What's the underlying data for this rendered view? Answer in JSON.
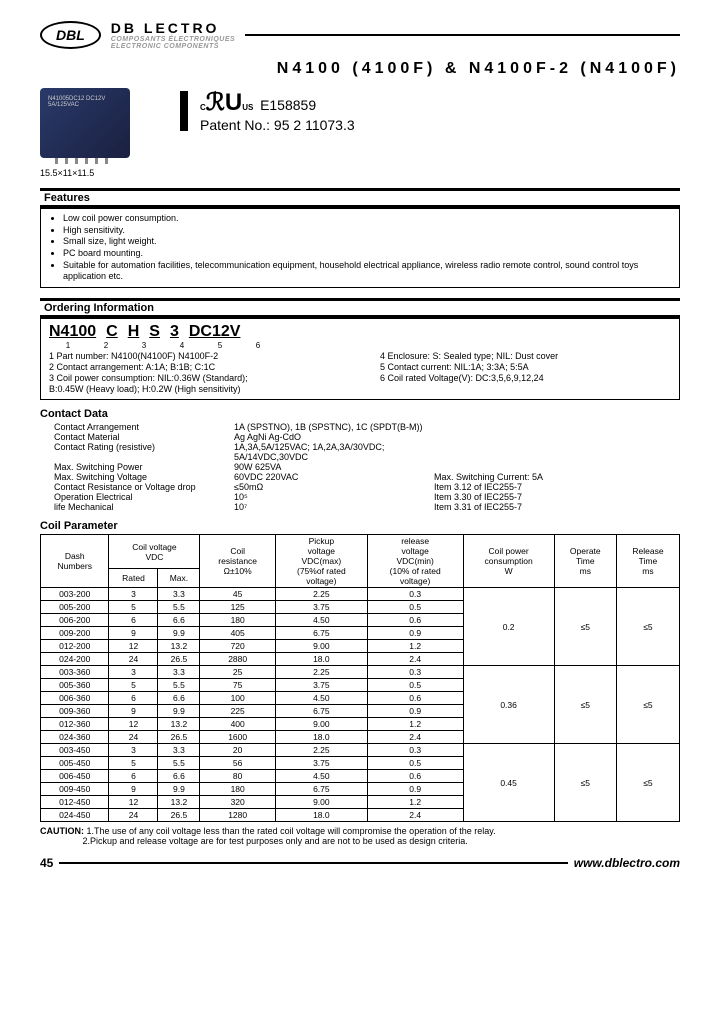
{
  "header": {
    "logo": "DBL",
    "brand": "DB LECTRO",
    "sub1": "COMPOSANTS ÉLECTRONIQUES",
    "sub2": "ELECTRONIC COMPONENTS"
  },
  "title": "N4100 (4100F) & N4100F-2 (N4100F)",
  "relay": {
    "chip_label": "N41005DC12\nDC12V\n5A/125VAC",
    "dims": "15.5×11×11.5"
  },
  "cert": {
    "ul_pre": "C",
    "ul_main": "ℛU",
    "ul_post": "US",
    "file": "E158859",
    "patent": "Patent No.: 95 2 11073.3"
  },
  "features": {
    "heading": "Features",
    "items": [
      "Low coil power consumption.",
      "High sensitivity.",
      "Small size, light weight.",
      "PC board mounting.",
      "Suitable for automation facilities, telecommunication equipment, household electrical appliance, wireless radio remote control, sound control toys application etc."
    ]
  },
  "ordering": {
    "heading": "Ordering Information",
    "code_parts": [
      "N4100",
      "C",
      "H",
      "S",
      "3",
      "DC12V"
    ],
    "left": [
      "1 Part number: N4100(N4100F)  N4100F-2",
      "2 Contact arrangement: A:1A; B:1B; C:1C",
      "3 Coil power consumption: NIL:0.36W (Standard);",
      "   B:0.45W (Heavy load); H:0.2W (High sensitivity)"
    ],
    "right": [
      "4 Enclosure: S: Sealed type; NIL: Dust cover",
      "5 Contact current: NIL:1A; 3:3A; 5:5A",
      "6 Coil rated Voltage(V): DC:3,5,6,9,12,24"
    ]
  },
  "contact": {
    "heading": "Contact Data",
    "rows": [
      {
        "lbl": "Contact Arrangement",
        "v1": "1A (SPSTNO), 1B (SPSTNC), 1C (SPDT(B-M))",
        "v2": ""
      },
      {
        "lbl": "Contact Material",
        "v1": "Ag  AgNi  Ag-CdO",
        "v2": ""
      },
      {
        "lbl": "Contact Rating (resistive)",
        "v1": "1A,3A,5A/125VAC; 1A,2A,3A/30VDC; 5A/14VDC,30VDC",
        "v2": ""
      },
      {
        "lbl": "Max. Switching Power",
        "v1": "90W  625VA",
        "v2": ""
      },
      {
        "lbl": "Max. Switching Voltage",
        "v1": "60VDC 220VAC",
        "v2": "Max. Switching Current: 5A"
      },
      {
        "lbl": "Contact Resistance or Voltage drop",
        "v1": "≤50mΩ",
        "v2": "Item 3.12 of IEC255-7"
      },
      {
        "lbl": "Operation    Electrical",
        "v1": "10⁵",
        "v2": "Item 3.30 of IEC255-7"
      },
      {
        "lbl": "life            Mechanical",
        "v1": "10⁷",
        "v2": "Item 3.31 of IEC255-7"
      }
    ]
  },
  "coil": {
    "heading": "Coil Parameter",
    "headers": {
      "dash": "Dash\nNumbers",
      "cv": "Coil voltage\nVDC",
      "rated": "Rated",
      "max": "Max.",
      "res": "Coil\nresistance\nΩ±10%",
      "pickup": "Pickup\nvoltage\nVDC(max)\n(75%of rated\nvoltage)",
      "release": "release\nvoltage\nVDC(min)\n(10% of rated\nvoltage)",
      "power": "Coil power\nconsumption\nW",
      "opt": "Operate\nTime\nms",
      "relt": "Release\nTime\nms"
    },
    "groups": [
      {
        "power": "0.2",
        "op": "≤5",
        "rel": "≤5",
        "rows": [
          {
            "d": "003-200",
            "r": "3",
            "m": "3.3",
            "res": "45",
            "pu": "2.25",
            "rv": "0.3"
          },
          {
            "d": "005-200",
            "r": "5",
            "m": "5.5",
            "res": "125",
            "pu": "3.75",
            "rv": "0.5"
          },
          {
            "d": "006-200",
            "r": "6",
            "m": "6.6",
            "res": "180",
            "pu": "4.50",
            "rv": "0.6"
          },
          {
            "d": "009-200",
            "r": "9",
            "m": "9.9",
            "res": "405",
            "pu": "6.75",
            "rv": "0.9"
          },
          {
            "d": "012-200",
            "r": "12",
            "m": "13.2",
            "res": "720",
            "pu": "9.00",
            "rv": "1.2"
          },
          {
            "d": "024-200",
            "r": "24",
            "m": "26.5",
            "res": "2880",
            "pu": "18.0",
            "rv": "2.4"
          }
        ]
      },
      {
        "power": "0.36",
        "op": "≤5",
        "rel": "≤5",
        "rows": [
          {
            "d": "003-360",
            "r": "3",
            "m": "3.3",
            "res": "25",
            "pu": "2.25",
            "rv": "0.3"
          },
          {
            "d": "005-360",
            "r": "5",
            "m": "5.5",
            "res": "75",
            "pu": "3.75",
            "rv": "0.5"
          },
          {
            "d": "006-360",
            "r": "6",
            "m": "6.6",
            "res": "100",
            "pu": "4.50",
            "rv": "0.6"
          },
          {
            "d": "009-360",
            "r": "9",
            "m": "9.9",
            "res": "225",
            "pu": "6.75",
            "rv": "0.9"
          },
          {
            "d": "012-360",
            "r": "12",
            "m": "13.2",
            "res": "400",
            "pu": "9.00",
            "rv": "1.2"
          },
          {
            "d": "024-360",
            "r": "24",
            "m": "26.5",
            "res": "1600",
            "pu": "18.0",
            "rv": "2.4"
          }
        ]
      },
      {
        "power": "0.45",
        "op": "≤5",
        "rel": "≤5",
        "rows": [
          {
            "d": "003-450",
            "r": "3",
            "m": "3.3",
            "res": "20",
            "pu": "2.25",
            "rv": "0.3"
          },
          {
            "d": "005-450",
            "r": "5",
            "m": "5.5",
            "res": "56",
            "pu": "3.75",
            "rv": "0.5"
          },
          {
            "d": "006-450",
            "r": "6",
            "m": "6.6",
            "res": "80",
            "pu": "4.50",
            "rv": "0.6"
          },
          {
            "d": "009-450",
            "r": "9",
            "m": "9.9",
            "res": "180",
            "pu": "6.75",
            "rv": "0.9"
          },
          {
            "d": "012-450",
            "r": "12",
            "m": "13.2",
            "res": "320",
            "pu": "9.00",
            "rv": "1.2"
          },
          {
            "d": "024-450",
            "r": "24",
            "m": "26.5",
            "res": "1280",
            "pu": "18.0",
            "rv": "2.4"
          }
        ]
      }
    ]
  },
  "caution": {
    "label": "CAUTION:",
    "l1": "1.The use of any coil voltage less than the rated coil voltage will compromise the operation of the relay.",
    "l2": "2.Pickup and release voltage are for test purposes only and are not to be used as design criteria."
  },
  "footer": {
    "page": "45",
    "url": "www.dblectro.com"
  }
}
